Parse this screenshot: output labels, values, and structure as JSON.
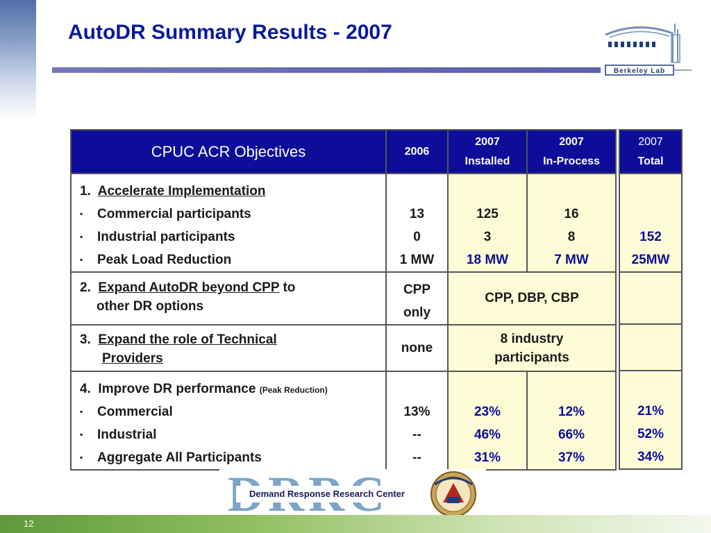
{
  "title": "AutoDR Summary Results - 2007",
  "logo_text": "Berkeley Lab",
  "header": {
    "objectives": "CPUC ACR Objectives",
    "col_2006": "2006",
    "col_installed_year": "2007",
    "col_installed": "Installed",
    "col_inprocess_year": "2007",
    "col_inprocess": "In-Process",
    "col_total_year": "2007",
    "col_total": "Total"
  },
  "section1": {
    "num": "1.",
    "heading": "Accelerate Implementation",
    "rows": [
      {
        "label": "Commercial participants",
        "v2006": "13",
        "installed": "125",
        "inprocess": "16"
      },
      {
        "label": "Industrial participants",
        "v2006": "0",
        "installed": "3",
        "inprocess": "8"
      },
      {
        "label": "Peak Load Reduction",
        "v2006": "1 MW",
        "installed": "18 MW",
        "inprocess": "7 MW"
      }
    ],
    "total_participants": "152",
    "total_load": "25MW"
  },
  "section2": {
    "num": "2.",
    "heading": "Expand AutoDR beyond CPP",
    "heading_suffix": "to",
    "line2": "other DR options",
    "v2006_a": "CPP",
    "v2006_b": "only",
    "value_2007": "CPP, DBP, CBP"
  },
  "section3": {
    "num": "3.",
    "heading_line1": "Expand the role of Technical",
    "heading_line2": "Providers",
    "v2006": "none",
    "value_2007_line1": "8 industry",
    "value_2007_line2": "participants"
  },
  "section4": {
    "num": "4.",
    "heading": "Improve DR performance",
    "note": "(Peak Reduction)",
    "rows": [
      {
        "label": "Commercial",
        "v2006": "13%",
        "installed": "23%",
        "inprocess": "12%",
        "total": "21%"
      },
      {
        "label": "Industrial",
        "v2006": "--",
        "installed": "46%",
        "inprocess": "66%",
        "total": "52%"
      },
      {
        "label": "Aggregate All Participants",
        "v2006": "--",
        "installed": "31%",
        "inprocess": "37%",
        "total": "34%"
      }
    ]
  },
  "drrc": {
    "letters": "DRRC",
    "subtitle": "Demand Response Research Center"
  },
  "page_number": "12",
  "colors": {
    "title": "#0a1a9a",
    "header_bg": "#0d0d9a",
    "cell_yellow": "#fefcd6",
    "footer_green": "#6ea846"
  }
}
